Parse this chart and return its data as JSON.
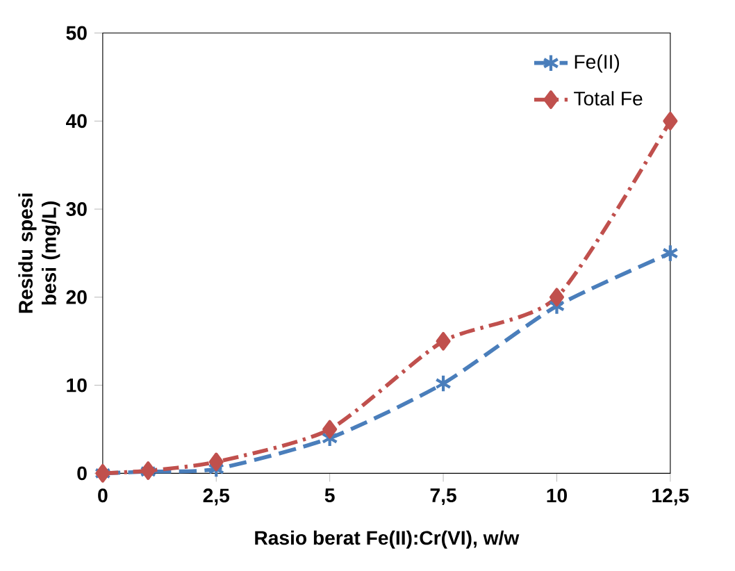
{
  "chart_data": {
    "type": "line",
    "xlabel": "Rasio berat Fe(II):Cr(VI), w/w",
    "ylabel": "Residu spesi besi (mg/L)",
    "x": [
      0,
      1,
      2.5,
      5,
      7.5,
      10,
      12.5
    ],
    "series": [
      {
        "name": "Fe(II)",
        "color": "#4a7ebb",
        "values": [
          0,
          0.2,
          0.5,
          4,
          10.2,
          19,
          25
        ],
        "marker": "cross",
        "line_style": "dashed"
      },
      {
        "name": "Total Fe",
        "color": "#c0504d",
        "values": [
          0,
          0.3,
          1.3,
          5,
          15,
          20,
          40
        ],
        "marker": "diamond",
        "line_style": "dashdot"
      }
    ],
    "xlim": [
      0,
      12.5
    ],
    "ylim": [
      0,
      50
    ],
    "xticks": [
      0,
      {
        "value": 2.5,
        "label": "2,5"
      },
      5,
      {
        "value": 7.5,
        "label": "7,5"
      },
      10,
      {
        "value": 12.5,
        "label": "12,5"
      }
    ],
    "yticks": [
      0,
      10,
      20,
      30,
      40,
      50
    ],
    "grid": false,
    "legend": "top right"
  }
}
